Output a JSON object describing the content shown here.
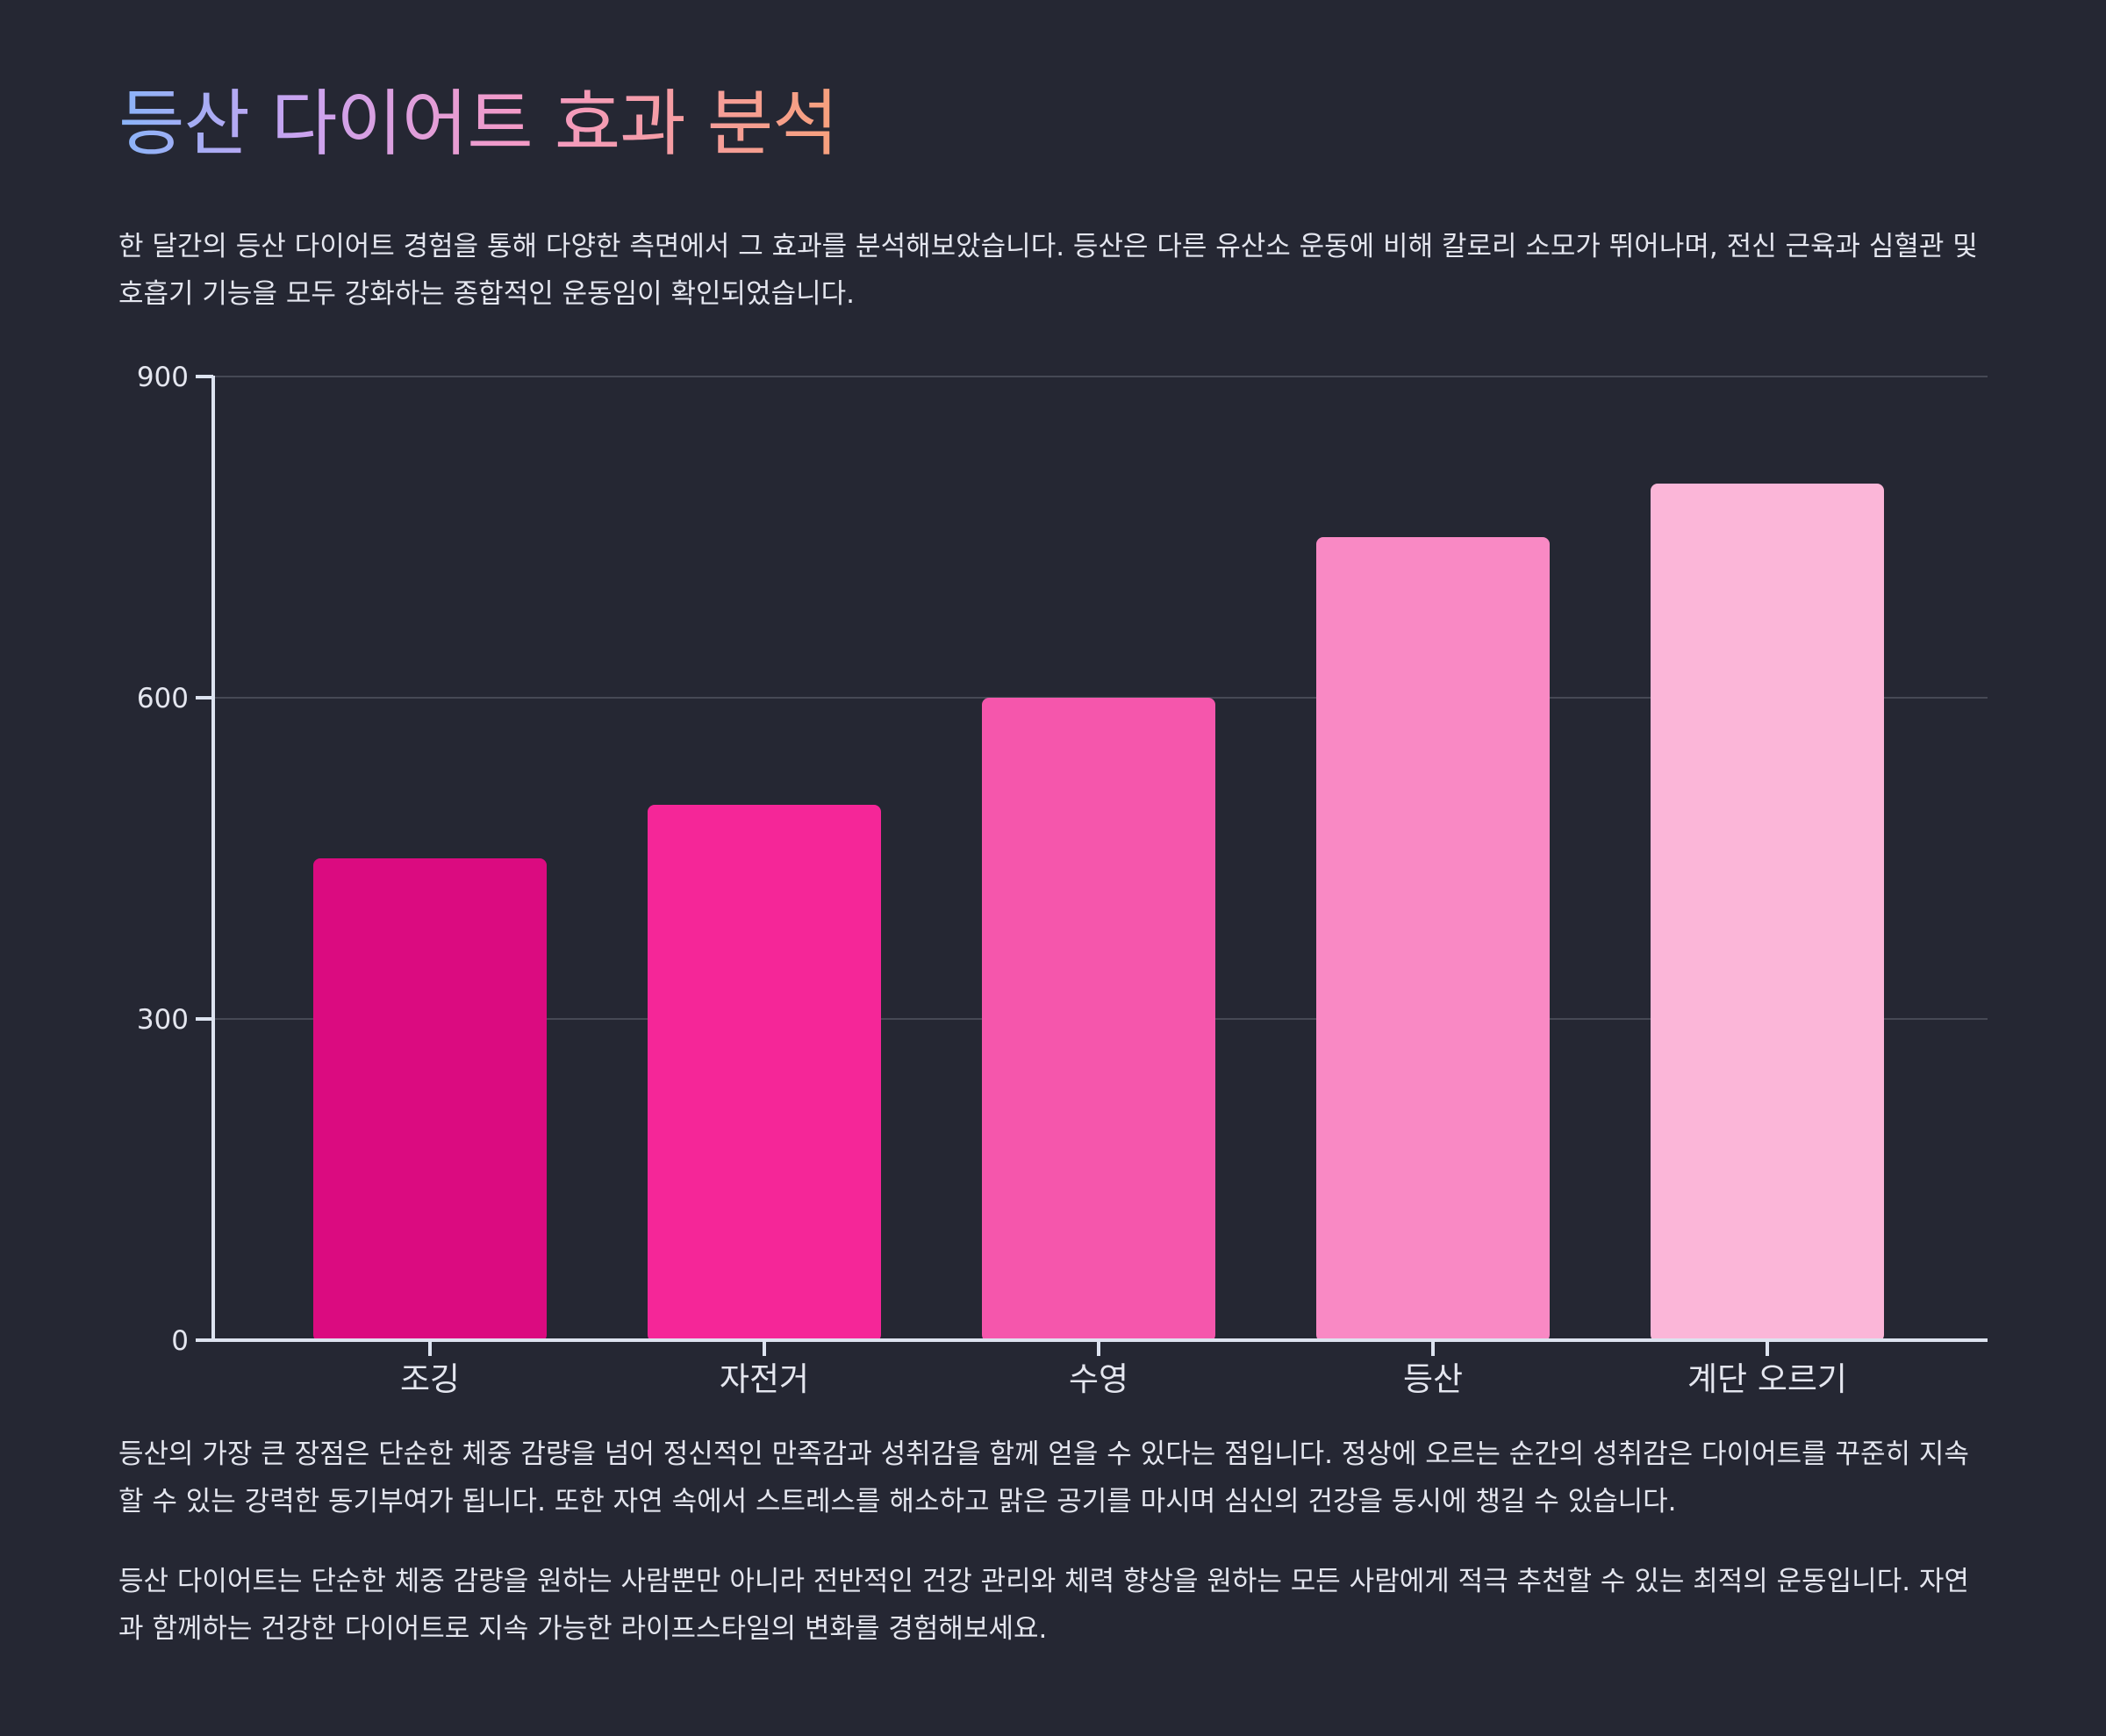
{
  "title": "등산 다이어트 효과 분석",
  "intro": "한 달간의 등산 다이어트 경험을 통해 다양한 측면에서 그 효과를 분석해보았습니다. 등산은 다른 유산소 운동에 비해 칼로리 소모가 뛰어나며, 전신 근육과 심혈관 및 호흡기 기능을 모두 강화하는 종합적인 운동임이 확인되었습니다.",
  "body_paragraphs": [
    "등산의 가장 큰 장점은 단순한 체중 감량을 넘어 정신적인 만족감과 성취감을 함께 얻을 수 있다는 점입니다. 정상에 오르는 순간의 성취감은 다이어트를 꾸준히 지속할 수 있는 강력한 동기부여가 됩니다. 또한 자연 속에서 스트레스를 해소하고 맑은 공기를 마시며 심신의 건강을 동시에 챙길 수 있습니다.",
    "등산 다이어트는 단순한 체중 감량을 원하는 사람뿐만 아니라 전반적인 건강 관리와 체력 향상을 원하는 모든 사람에게 적극 추천할 수 있는 최적의 운동입니다. 자연과 함께하는 건강한 다이어트로 지속 가능한 라이프스타일의 변화를 경험해보세요."
  ],
  "chart_data": {
    "type": "bar",
    "categories": [
      "조깅",
      "자전거",
      "수영",
      "등산",
      "계단 오르기"
    ],
    "values": [
      450,
      500,
      600,
      750,
      800
    ],
    "colors": [
      "#db0b80",
      "#f52698",
      "#f556ac",
      "#f989c4",
      "#fbb6d8"
    ],
    "y_ticks": [
      0,
      300,
      600,
      900
    ],
    "ylim": [
      0,
      900
    ],
    "grid": true,
    "title": "",
    "xlabel": "",
    "ylabel": ""
  }
}
